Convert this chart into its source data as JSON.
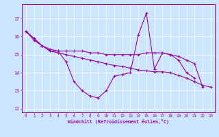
{
  "xlabel": "Windchill (Refroidissement éolien,°C)",
  "background_color": "#cce5ff",
  "line_color": "#990099",
  "xlim": [
    -0.5,
    23.5
  ],
  "ylim": [
    11.8,
    17.8
  ],
  "yticks": [
    12,
    13,
    14,
    15,
    16,
    17
  ],
  "xticks": [
    0,
    1,
    2,
    3,
    4,
    5,
    6,
    7,
    8,
    9,
    10,
    11,
    12,
    13,
    14,
    15,
    16,
    17,
    18,
    19,
    20,
    21,
    22,
    23
  ],
  "line1": [
    16.3,
    15.9,
    15.5,
    15.2,
    15.2,
    14.6,
    13.5,
    13.0,
    12.7,
    12.6,
    13.0,
    13.8,
    13.9,
    14.0,
    16.1,
    17.3,
    14.2,
    15.1,
    15.0,
    14.7,
    14.0,
    13.7,
    null,
    null
  ],
  "line2": [
    16.3,
    15.9,
    15.5,
    15.3,
    15.2,
    15.2,
    15.2,
    15.2,
    15.1,
    15.1,
    15.0,
    15.0,
    15.0,
    15.0,
    15.0,
    15.1,
    15.1,
    15.1,
    15.0,
    14.9,
    14.7,
    14.5,
    13.2,
    null
  ],
  "line3": [
    16.3,
    15.8,
    15.5,
    15.2,
    15.1,
    15.0,
    14.9,
    14.8,
    14.7,
    14.6,
    14.5,
    14.4,
    14.35,
    14.25,
    14.15,
    14.1,
    14.05,
    14.05,
    14.0,
    13.85,
    13.7,
    13.5,
    13.3,
    13.2
  ]
}
